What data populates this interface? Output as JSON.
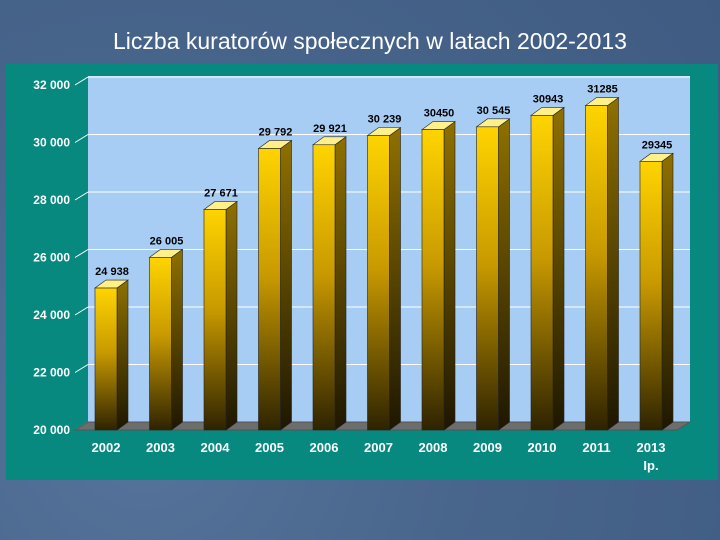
{
  "slide": {
    "title": "Liczba kuratorów społecznych w latach 2002-2013"
  },
  "chart_data": {
    "type": "bar",
    "title": "",
    "xlabel": "",
    "ylabel": "",
    "categories": [
      "2002",
      "2003",
      "2004",
      "2005",
      "2006",
      "2007",
      "2008",
      "2009",
      "2010",
      "2011",
      "2013"
    ],
    "category_sublabels": [
      "",
      "",
      "",
      "",
      "",
      "",
      "",
      "",
      "",
      "",
      "Ip."
    ],
    "values": [
      24938,
      26005,
      27671,
      29792,
      29921,
      30239,
      30450,
      30545,
      30943,
      31285,
      29345
    ],
    "data_labels": [
      "24 938",
      "26 005",
      "27 671",
      "29 792",
      "29 921",
      "30 239",
      "30450",
      "30 545",
      "30943",
      "31285",
      "29345"
    ],
    "ylim": [
      20000,
      32000
    ],
    "yticks": [
      20000,
      22000,
      24000,
      26000,
      28000,
      30000,
      32000
    ],
    "ytick_labels": [
      "20 000",
      "22 000",
      "24 000",
      "26 000",
      "28 000",
      "30 000",
      "32 000"
    ],
    "grid": true,
    "legend": "none",
    "colors": {
      "bar_top": "#ffd200",
      "bar_bottom": "#3a2c00",
      "bar_side": "#6b5400",
      "bar_cap": "#fff08a",
      "plot_background": "#a8cdf5",
      "panel": "#07897f",
      "axis_labels": "#ffffff",
      "data_labels": "#000000"
    }
  }
}
